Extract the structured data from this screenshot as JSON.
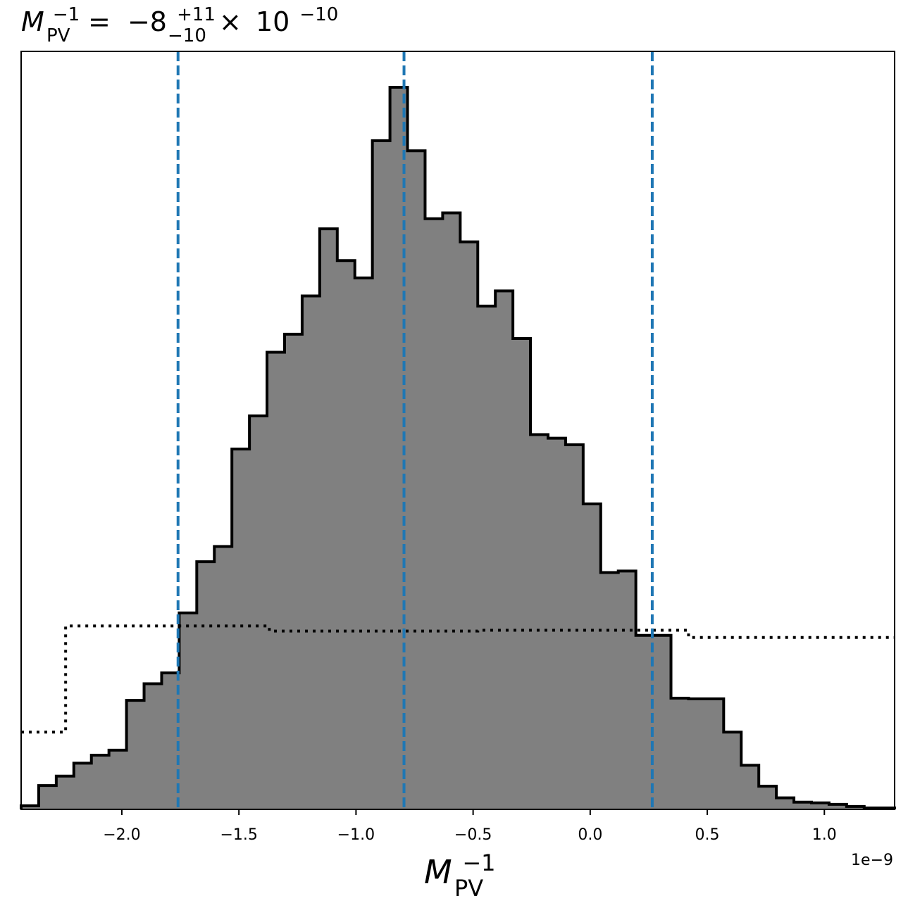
{
  "chart_data": {
    "type": "histogram",
    "title": {
      "symbol": "M",
      "symbol_sub": "PV",
      "symbol_sup": "−1",
      "equals": "=",
      "mantissa": "−8",
      "err_plus": "+11",
      "err_minus": "−10",
      "times": "×",
      "base": "10",
      "exponent": "−10"
    },
    "xlabel": {
      "symbol": "M",
      "symbol_sub": "PV",
      "symbol_sup": "−1"
    },
    "offset_text": "1e−9",
    "x_unit_scale": 1e-09,
    "xlim": [
      -2.43,
      1.3
    ],
    "ylim": [
      0,
      1.0
    ],
    "x_ticks": [
      -2.0,
      -1.5,
      -1.0,
      -0.5,
      0.0,
      0.5,
      1.0
    ],
    "x_tick_labels": [
      "−2.0",
      "−1.5",
      "−1.0",
      "−0.5",
      "0.0",
      "0.5",
      "1.0"
    ],
    "yaxis_visible": false,
    "grid": false,
    "posterior": {
      "bin_edges": [
        -2.43,
        -2.355,
        -2.28,
        -2.205,
        -2.13,
        -2.055,
        -1.98,
        -1.905,
        -1.83,
        -1.755,
        -1.68,
        -1.605,
        -1.53,
        -1.455,
        -1.38,
        -1.305,
        -1.23,
        -1.155,
        -1.08,
        -1.005,
        -0.93,
        -0.855,
        -0.78,
        -0.705,
        -0.63,
        -0.555,
        -0.48,
        -0.405,
        -0.33,
        -0.255,
        -0.18,
        -0.105,
        -0.03,
        0.045,
        0.12,
        0.195,
        0.27,
        0.345,
        0.42,
        0.495,
        0.57,
        0.645,
        0.72,
        0.795,
        0.87,
        0.945,
        1.02,
        1.095,
        1.17,
        1.245,
        1.3
      ],
      "heights": [
        0.005,
        0.033,
        0.046,
        0.064,
        0.075,
        0.082,
        0.151,
        0.174,
        0.189,
        0.272,
        0.343,
        0.364,
        0.499,
        0.545,
        0.633,
        0.658,
        0.711,
        0.804,
        0.76,
        0.736,
        0.926,
        1.0,
        0.912,
        0.818,
        0.826,
        0.786,
        0.697,
        0.718,
        0.652,
        0.519,
        0.514,
        0.505,
        0.423,
        0.328,
        0.33,
        0.241,
        0.241,
        0.154,
        0.153,
        0.153,
        0.107,
        0.061,
        0.032,
        0.016,
        0.01,
        0.009,
        0.007,
        0.004,
        0.002,
        0.002
      ],
      "fill_color": "#808080",
      "edge_color": "#000000"
    },
    "prior": {
      "bin_edges": [
        -2.43,
        -2.24,
        -1.37,
        -0.48,
        0.42,
        1.3
      ],
      "heights": [
        0.107,
        0.254,
        0.247,
        0.248,
        0.238
      ],
      "style": "dotted",
      "color": "#000000"
    },
    "quantile_lines": {
      "x": [
        -1.76,
        -0.795,
        0.265
      ],
      "color": "#1f77b4",
      "style": "dashed"
    }
  }
}
